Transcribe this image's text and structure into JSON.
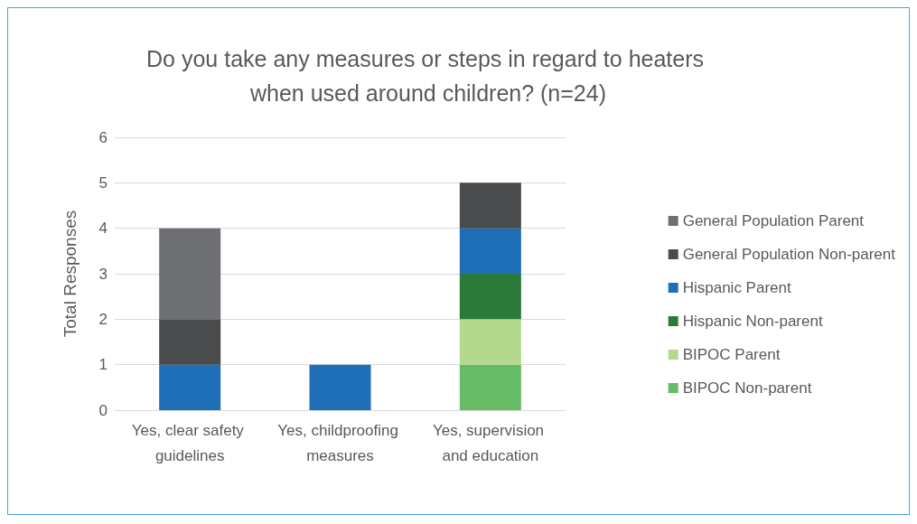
{
  "chart_data": {
    "type": "bar",
    "stacked": true,
    "title": "Do you take any measures or steps in regard to heaters when used around children? (n=24)",
    "ylabel": "Total Responses",
    "categories": [
      "Yes, clear safety guidelines",
      "Yes, childproofing measures",
      "Yes, supervision and education"
    ],
    "series": [
      {
        "name": "BIPOC Non-parent",
        "color": "#66bb66",
        "values": [
          0,
          0,
          1
        ]
      },
      {
        "name": "BIPOC Parent",
        "color": "#b3d98f",
        "values": [
          0,
          0,
          1
        ]
      },
      {
        "name": "Hispanic Non-parent",
        "color": "#2b7a3a",
        "values": [
          0,
          0,
          1
        ]
      },
      {
        "name": "Hispanic Parent",
        "color": "#1f6fb8",
        "values": [
          1,
          1,
          1
        ]
      },
      {
        "name": "General Population Non-parent",
        "color": "#4a4b4d",
        "values": [
          1,
          0,
          1
        ]
      },
      {
        "name": "General Population Parent",
        "color": "#6d6f72",
        "values": [
          2,
          0,
          0
        ]
      }
    ],
    "ylim": [
      0,
      6
    ],
    "yticks": [
      0,
      1,
      2,
      3,
      4,
      5,
      6
    ],
    "grid": "y",
    "legend": "right"
  }
}
